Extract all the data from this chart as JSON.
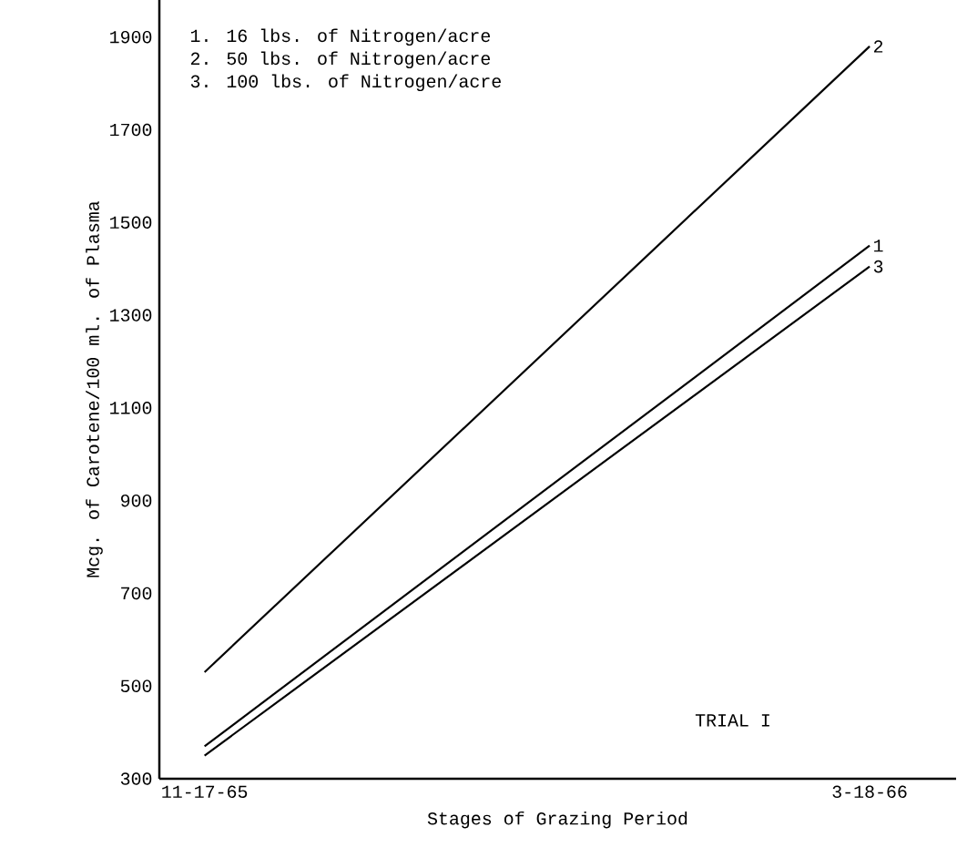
{
  "chart_data": {
    "type": "line",
    "xlabel": "Stages of Grazing Period",
    "ylabel": "Mcg. of Carotene/100 ml. of Plasma",
    "categories": [
      "11-17-65",
      "3-18-66"
    ],
    "series": [
      {
        "name": "1",
        "color": "#000000",
        "values": [
          370,
          1450
        ]
      },
      {
        "name": "2",
        "color": "#000000",
        "values": [
          530,
          1880
        ]
      },
      {
        "name": "3",
        "color": "#000000",
        "values": [
          350,
          1405
        ]
      }
    ],
    "ylim": [
      300,
      1980
    ],
    "yticks": [
      300,
      500,
      700,
      900,
      1100,
      1300,
      1500,
      1700,
      1900
    ],
    "annotations": [
      "1. 16 lbs. of Nitrogen/acre",
      "2. 50 lbs. of Nitrogen/acre",
      "3. 100 lbs. of Nitrogen/acre",
      "TRIAL I"
    ],
    "grid": false,
    "legend": false,
    "marker": "none",
    "line_style": "solid"
  }
}
